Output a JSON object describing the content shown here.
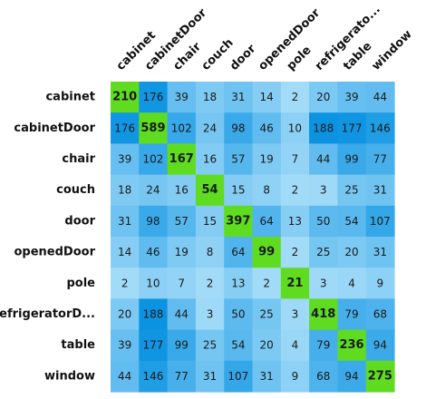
{
  "chart_data": {
    "type": "heatmap",
    "title": "",
    "xlabel": "",
    "ylabel": "",
    "grid": false,
    "legend": "none",
    "x_categories": [
      "cabinet",
      "cabinetDoor",
      "chair",
      "couch",
      "door",
      "openedDoor",
      "pole",
      "refrigerato...",
      "table",
      "window"
    ],
    "y_categories": [
      "cabinet",
      "cabinetDoor",
      "chair",
      "couch",
      "door",
      "openedDoor",
      "pole",
      "refrigeratorD...",
      "table",
      "window"
    ],
    "values": [
      [
        210,
        176,
        39,
        18,
        31,
        14,
        2,
        20,
        39,
        44
      ],
      [
        176,
        589,
        102,
        24,
        98,
        46,
        10,
        188,
        177,
        146
      ],
      [
        39,
        102,
        167,
        16,
        57,
        19,
        7,
        44,
        99,
        77
      ],
      [
        18,
        24,
        16,
        54,
        15,
        8,
        2,
        3,
        25,
        31
      ],
      [
        31,
        98,
        57,
        15,
        397,
        64,
        13,
        50,
        54,
        107
      ],
      [
        14,
        46,
        19,
        8,
        64,
        99,
        2,
        25,
        20,
        31
      ],
      [
        2,
        10,
        7,
        2,
        13,
        2,
        21,
        3,
        4,
        9
      ],
      [
        20,
        188,
        44,
        3,
        50,
        25,
        3,
        418,
        79,
        68
      ],
      [
        39,
        177,
        99,
        25,
        54,
        20,
        4,
        79,
        236,
        94
      ],
      [
        44,
        146,
        77,
        31,
        107,
        31,
        9,
        68,
        94,
        275
      ]
    ],
    "colors": {
      "diagonal": "#5fdc20",
      "off_diagonal_light": "#b3e3fb",
      "off_diagonal_dark": "#0b93e2",
      "text": "#1a1a1a"
    }
  }
}
